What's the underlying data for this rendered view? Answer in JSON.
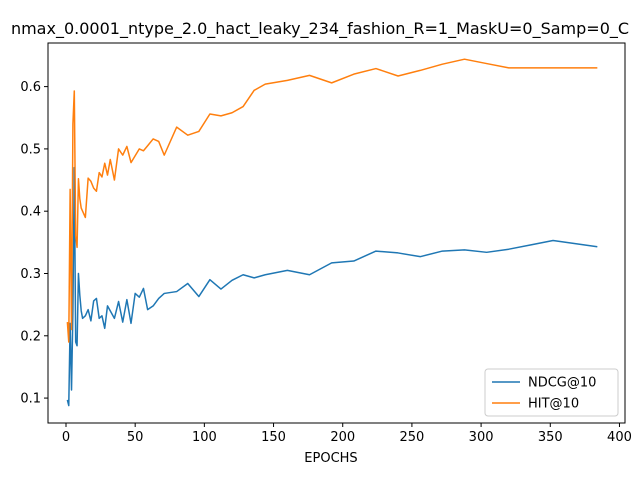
{
  "chart_data": {
    "type": "line",
    "title": "nmax_0.0001_ntype_2.0_hact_leaky_234_fashion_R=1_MaskU=0_Samp=0_C",
    "xlabel": "EPOCHS",
    "ylabel": "",
    "xlim": [
      -13,
      404
    ],
    "ylim": [
      0.06,
      0.67
    ],
    "xticks": [
      0,
      50,
      100,
      150,
      200,
      250,
      300,
      350,
      400
    ],
    "yticks": [
      0.1,
      0.2,
      0.3,
      0.4,
      0.5,
      0.6
    ],
    "grid": false,
    "legend_position": "bottom-right",
    "series": [
      {
        "name": "NDCG@10",
        "color": "#1f77b4",
        "x": [
          1,
          2,
          3,
          4,
          5,
          6,
          7,
          8,
          9,
          10,
          11,
          12,
          14,
          16,
          18,
          20,
          22,
          24,
          26,
          28,
          30,
          32,
          35,
          38,
          41,
          44,
          47,
          50,
          53,
          56,
          59,
          63,
          67,
          71,
          80,
          88,
          96,
          104,
          112,
          120,
          128,
          136,
          144,
          160,
          176,
          192,
          208,
          224,
          240,
          256,
          272,
          288,
          304,
          320,
          336,
          352,
          368,
          384
        ],
        "y": [
          0.097,
          0.088,
          0.22,
          0.113,
          0.24,
          0.47,
          0.19,
          0.184,
          0.3,
          0.265,
          0.24,
          0.228,
          0.232,
          0.242,
          0.224,
          0.256,
          0.26,
          0.228,
          0.232,
          0.212,
          0.248,
          0.24,
          0.228,
          0.255,
          0.222,
          0.258,
          0.22,
          0.268,
          0.262,
          0.276,
          0.242,
          0.248,
          0.26,
          0.268,
          0.271,
          0.284,
          0.263,
          0.29,
          0.275,
          0.289,
          0.298,
          0.293,
          0.298,
          0.305,
          0.298,
          0.317,
          0.32,
          0.336,
          0.333,
          0.327,
          0.336,
          0.338,
          0.334,
          0.339,
          0.346,
          0.353,
          0.348,
          0.343
        ]
      },
      {
        "name": "HIT@10",
        "color": "#ff7f0e",
        "x": [
          1,
          2,
          3,
          4,
          5,
          6,
          7,
          8,
          9,
          10,
          11,
          12,
          14,
          16,
          18,
          20,
          22,
          24,
          26,
          28,
          30,
          32,
          35,
          38,
          41,
          44,
          47,
          50,
          53,
          56,
          59,
          63,
          67,
          71,
          80,
          88,
          96,
          104,
          112,
          120,
          128,
          136,
          144,
          160,
          176,
          192,
          208,
          224,
          240,
          256,
          272,
          288,
          304,
          320,
          336,
          352,
          368,
          384
        ],
        "y": [
          0.222,
          0.19,
          0.435,
          0.21,
          0.54,
          0.593,
          0.36,
          0.342,
          0.452,
          0.42,
          0.405,
          0.4,
          0.39,
          0.453,
          0.448,
          0.437,
          0.432,
          0.462,
          0.455,
          0.477,
          0.458,
          0.483,
          0.45,
          0.5,
          0.49,
          0.504,
          0.478,
          0.489,
          0.5,
          0.497,
          0.505,
          0.516,
          0.512,
          0.49,
          0.535,
          0.522,
          0.528,
          0.556,
          0.553,
          0.558,
          0.568,
          0.594,
          0.604,
          0.61,
          0.618,
          0.606,
          0.62,
          0.629,
          0.617,
          0.626,
          0.636,
          0.644,
          0.637,
          0.63,
          0.63,
          0.63,
          0.63,
          0.63
        ]
      }
    ]
  }
}
